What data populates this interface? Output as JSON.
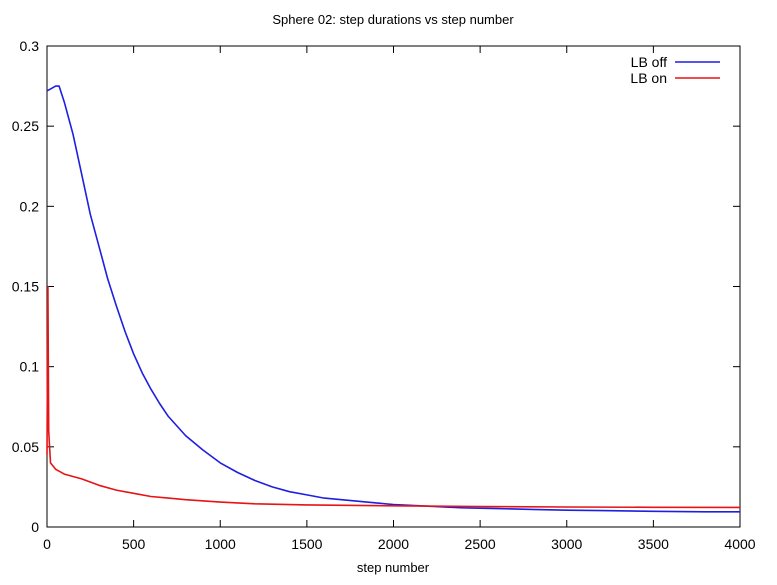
{
  "chart_data": {
    "type": "line",
    "title": "Sphere 02: step durations vs step number",
    "xlabel": "step number",
    "ylabel": "",
    "xlim": [
      0,
      4000
    ],
    "ylim": [
      0,
      0.3
    ],
    "x_ticks": [
      "0",
      "500",
      "1000",
      "1500",
      "2000",
      "2500",
      "3000",
      "3500",
      "4000"
    ],
    "y_ticks": [
      "0",
      "0.05",
      "0.1",
      "0.15",
      "0.2",
      "0.25",
      "0.3"
    ],
    "grid": false,
    "legend_position": "top-right",
    "series": [
      {
        "name": "LB off",
        "color": "#1f1fe0",
        "x": [
          0,
          50,
          70,
          100,
          150,
          200,
          250,
          300,
          350,
          400,
          450,
          500,
          550,
          600,
          650,
          700,
          800,
          900,
          1000,
          1100,
          1200,
          1300,
          1400,
          1500,
          1600,
          1700,
          1800,
          1900,
          2000,
          2200,
          2400,
          2600,
          2800,
          3000,
          3200,
          3500,
          3800,
          4000
        ],
        "y": [
          0.272,
          0.275,
          0.275,
          0.265,
          0.245,
          0.22,
          0.195,
          0.175,
          0.155,
          0.138,
          0.122,
          0.108,
          0.096,
          0.086,
          0.077,
          0.069,
          0.057,
          0.048,
          0.04,
          0.034,
          0.029,
          0.025,
          0.022,
          0.02,
          0.018,
          0.017,
          0.016,
          0.015,
          0.014,
          0.013,
          0.012,
          0.0115,
          0.011,
          0.0105,
          0.0102,
          0.0098,
          0.0095,
          0.0095
        ]
      },
      {
        "name": "LB on",
        "color": "#e61414",
        "x": [
          0,
          5,
          10,
          20,
          50,
          100,
          200,
          300,
          400,
          500,
          600,
          700,
          800,
          1000,
          1200,
          1500,
          2000,
          2500,
          3000,
          3500,
          4000
        ],
        "y": [
          0.045,
          0.15,
          0.06,
          0.04,
          0.036,
          0.033,
          0.03,
          0.026,
          0.023,
          0.021,
          0.019,
          0.018,
          0.017,
          0.0155,
          0.0145,
          0.0138,
          0.0132,
          0.0128,
          0.0125,
          0.0123,
          0.0122
        ]
      }
    ]
  }
}
